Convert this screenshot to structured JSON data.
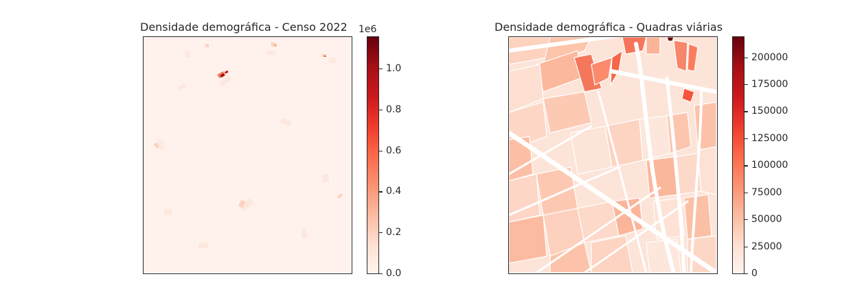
{
  "panels": [
    {
      "title": "Densidade demográfica - Censo 2022",
      "colorbar": {
        "exponent": "1e6",
        "ticks": [
          "1.0",
          "0.8",
          "0.6",
          "0.4",
          "0.2",
          "0.0"
        ],
        "max": 1.16,
        "tick_values": [
          1.0,
          0.8,
          0.6,
          0.4,
          0.2,
          0.0
        ]
      }
    },
    {
      "title": "Densidade demográfica - Quadras viárias",
      "colorbar": {
        "ticks": [
          "200000",
          "175000",
          "150000",
          "125000",
          "100000",
          "75000",
          "50000",
          "25000",
          "0"
        ],
        "max": 220000,
        "tick_values": [
          200000,
          175000,
          150000,
          125000,
          100000,
          75000,
          50000,
          25000,
          0
        ]
      }
    }
  ],
  "colormap": "Reds",
  "colors": {
    "light": "#fff5f0",
    "dark": "#67000d"
  }
}
